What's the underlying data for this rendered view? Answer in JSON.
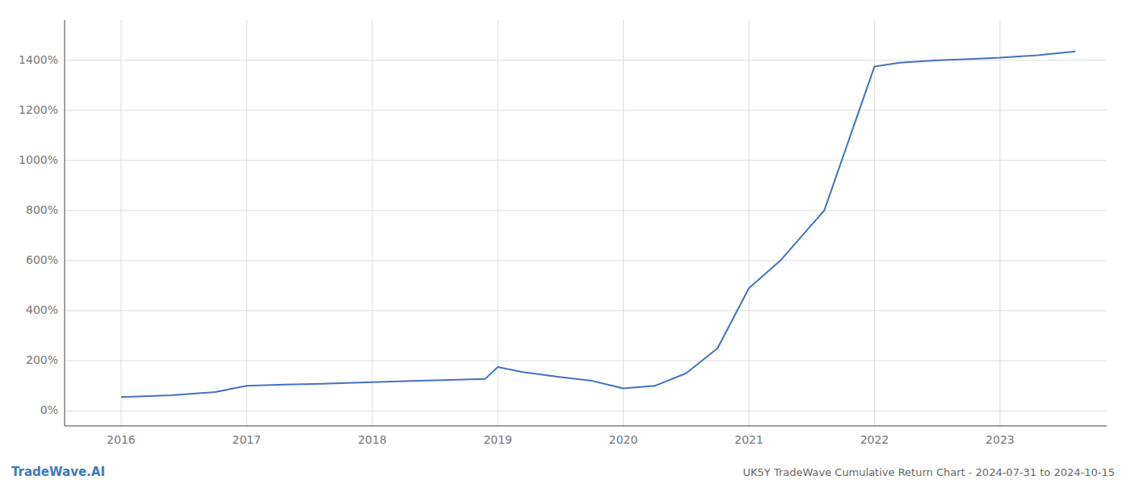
{
  "chart_data": {
    "type": "line",
    "title": "UK5Y TradeWave Cumulative Return Chart - 2024-07-31 to 2024-10-15",
    "annotations": [
      "TradeWave.AI"
    ],
    "x": [
      2016.0,
      2016.4,
      2016.75,
      2017.0,
      2017.3,
      2017.6,
      2018.0,
      2018.5,
      2018.9,
      2019.0,
      2019.2,
      2019.5,
      2019.75,
      2020.0,
      2020.25,
      2020.5,
      2020.75,
      2021.0,
      2021.25,
      2021.6,
      2022.0,
      2022.2,
      2022.5,
      2022.75,
      2023.0,
      2023.3,
      2023.6
    ],
    "values": [
      55,
      62,
      75,
      100,
      105,
      108,
      115,
      122,
      128,
      175,
      155,
      135,
      120,
      90,
      100,
      150,
      250,
      490,
      600,
      800,
      1375,
      1390,
      1400,
      1405,
      1410,
      1420,
      1435
    ],
    "color": "#4472c4",
    "xlim": [
      2015.55,
      2023.85
    ],
    "ylim": [
      -60,
      1560
    ],
    "xticks": [
      2016,
      2017,
      2018,
      2019,
      2020,
      2021,
      2022,
      2023
    ],
    "yticks": [
      {
        "value": 0,
        "label": "0%"
      },
      {
        "value": 200,
        "label": "200%"
      },
      {
        "value": 400,
        "label": "400%"
      },
      {
        "value": 600,
        "label": "600%"
      },
      {
        "value": 800,
        "label": "800%"
      },
      {
        "value": 1000,
        "label": "1000%"
      },
      {
        "value": 1200,
        "label": "1200%"
      },
      {
        "value": 1400,
        "label": "1400%"
      }
    ],
    "grid": true
  }
}
